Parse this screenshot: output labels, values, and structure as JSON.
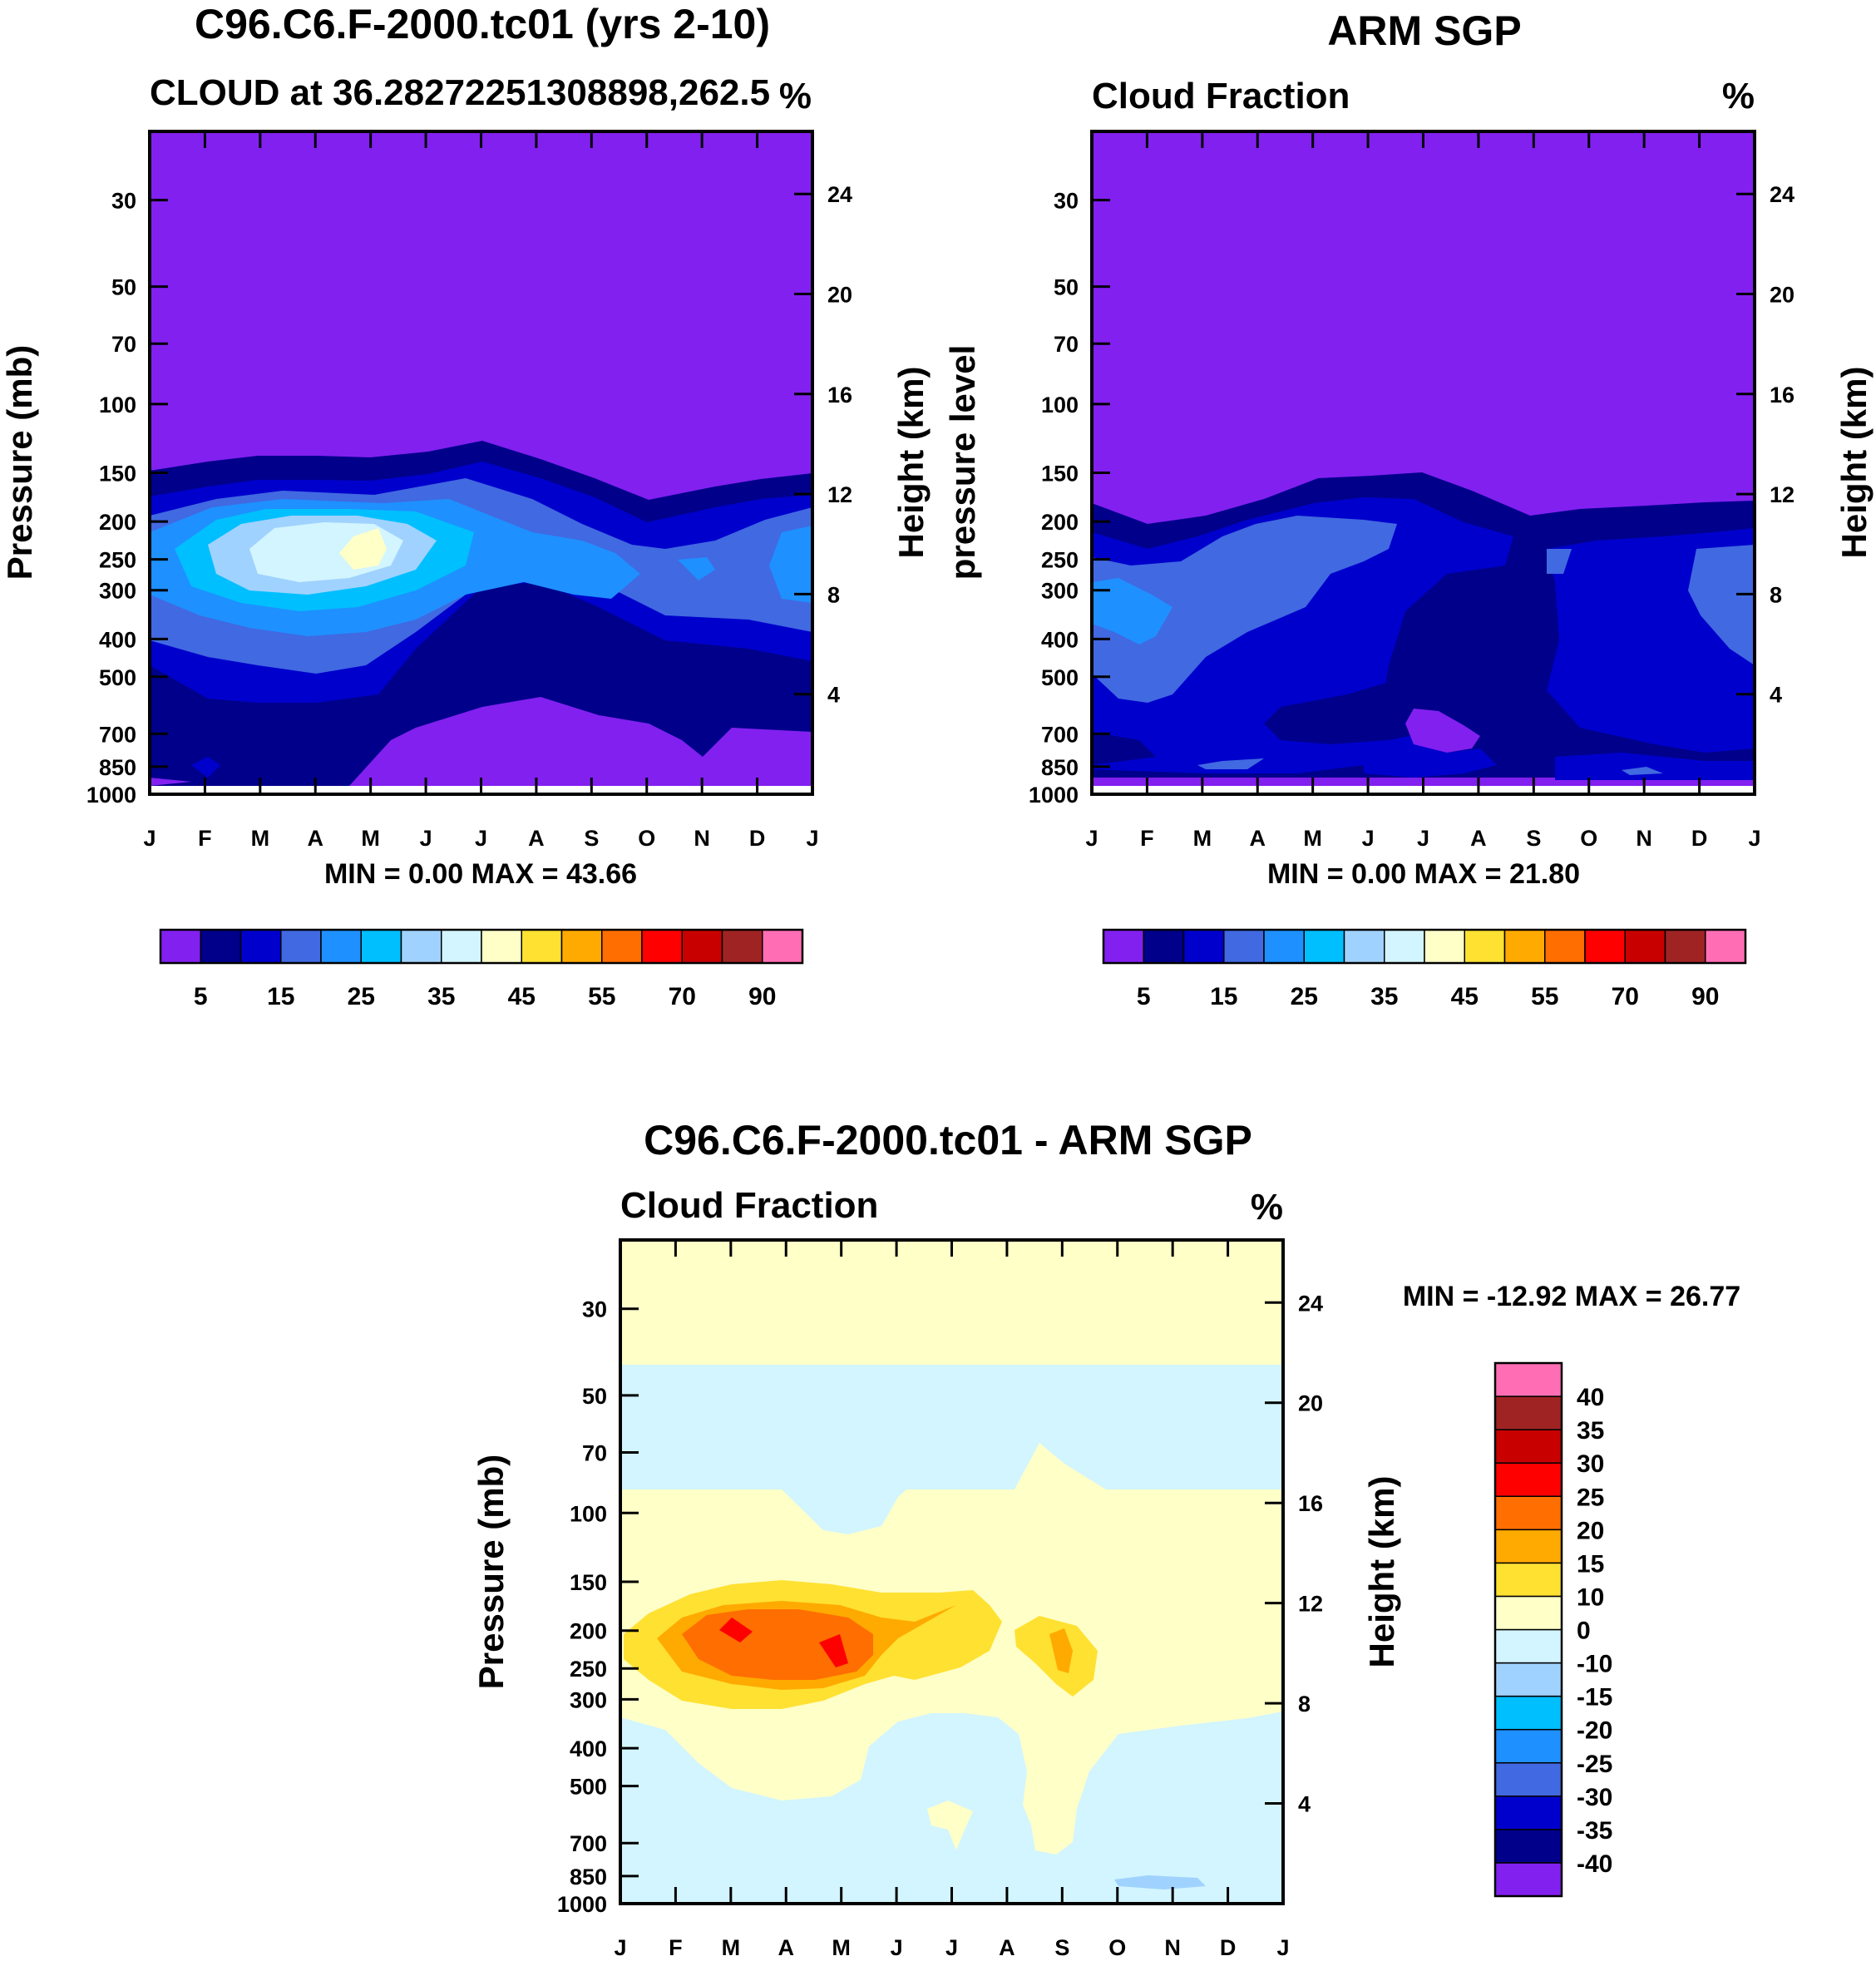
{
  "colors": [
    "#8220f0",
    "#00008b",
    "#0000cd",
    "#4169e1",
    "#1e90ff",
    "#00bfff",
    "#a0d2ff",
    "#d2f5ff",
    "#ffffc8",
    "#ffe132",
    "#ffaa00",
    "#ff6e00",
    "#ff0000",
    "#c80000",
    "#a02323",
    "#ff6eb4"
  ],
  "chart_data": [
    {
      "type": "contour",
      "title": "C96.C6.F-2000.tc01 (yrs 2-10)",
      "subtitle": "CLOUD at 36.28272251308898,262.5",
      "units": "%",
      "xlabel": "",
      "ylabel": "Pressure (mb)",
      "ylabel_right": "Height (km)",
      "x_ticks": [
        "J",
        "F",
        "M",
        "A",
        "M",
        "J",
        "J",
        "A",
        "S",
        "O",
        "N",
        "D",
        "J"
      ],
      "y_ticks": [
        "30",
        "50",
        "70",
        "100",
        "150",
        "200",
        "250",
        "300",
        "400",
        "500",
        "700",
        "850",
        "1000"
      ],
      "y_ticks_right": [
        "24",
        "20",
        "16",
        "12",
        "8",
        "4"
      ],
      "ylim": [
        1000,
        20
      ],
      "min_max": "MIN =    0.00 MAX =  43.66",
      "colorbar_labels": [
        "5",
        "15",
        "25",
        "35",
        "45",
        "55",
        "70",
        "90"
      ],
      "contour_levels": [
        5,
        10,
        15,
        20,
        25,
        30,
        35,
        40,
        45,
        50,
        55,
        60,
        70,
        80,
        90
      ]
    },
    {
      "type": "contour",
      "title": "ARM SGP",
      "subtitle": "Cloud Fraction",
      "units": "%",
      "xlabel": "",
      "ylabel": "pressure level",
      "ylabel_right": "Height (km)",
      "x_ticks": [
        "J",
        "F",
        "M",
        "A",
        "M",
        "J",
        "J",
        "A",
        "S",
        "O",
        "N",
        "D",
        "J"
      ],
      "y_ticks": [
        "30",
        "50",
        "70",
        "100",
        "150",
        "200",
        "250",
        "300",
        "400",
        "500",
        "700",
        "850",
        "1000"
      ],
      "y_ticks_right": [
        "24",
        "20",
        "16",
        "12",
        "8",
        "4"
      ],
      "ylim": [
        1000,
        20
      ],
      "min_max": "MIN =    0.00 MAX =  21.80",
      "colorbar_labels": [
        "5",
        "15",
        "25",
        "35",
        "45",
        "55",
        "70",
        "90"
      ],
      "contour_levels": [
        5,
        10,
        15,
        20,
        25,
        30,
        35,
        40,
        45,
        50,
        55,
        60,
        70,
        80,
        90
      ]
    },
    {
      "type": "contour",
      "title": "C96.C6.F-2000.tc01 - ARM SGP",
      "subtitle": "Cloud Fraction",
      "units": "%",
      "xlabel": "",
      "ylabel": "Pressure (mb)",
      "ylabel_right": "Height (km)",
      "x_ticks": [
        "J",
        "F",
        "M",
        "A",
        "M",
        "J",
        "J",
        "A",
        "S",
        "O",
        "N",
        "D",
        "J"
      ],
      "y_ticks": [
        "30",
        "50",
        "70",
        "100",
        "150",
        "200",
        "250",
        "300",
        "400",
        "500",
        "700",
        "850",
        "1000"
      ],
      "y_ticks_right": [
        "24",
        "20",
        "16",
        "12",
        "8",
        "4"
      ],
      "ylim": [
        1000,
        20
      ],
      "min_max": "MIN = -12.92 MAX =  26.77",
      "colorbar_labels": [
        "40",
        "35",
        "30",
        "25",
        "20",
        "15",
        "10",
        "0",
        "-10",
        "-15",
        "-20",
        "-25",
        "-30",
        "-35",
        "-40"
      ],
      "contour_levels": [
        -40,
        -35,
        -30,
        -25,
        -20,
        -15,
        -10,
        0,
        10,
        15,
        20,
        25,
        30,
        35,
        40
      ]
    }
  ]
}
